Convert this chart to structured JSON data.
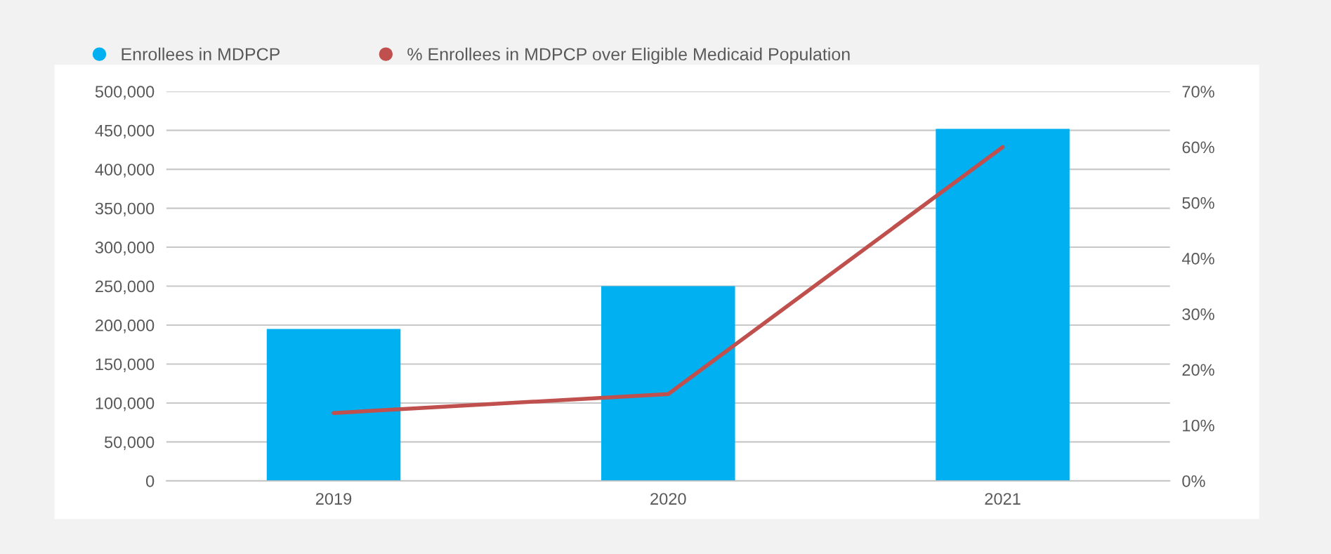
{
  "chart_data": {
    "type": "bar",
    "categories": [
      "2019",
      "2020",
      "2021"
    ],
    "series": [
      {
        "name": "Enrollees in MDPCP",
        "color": "#00b0f0",
        "values": [
          195000,
          250000,
          452000
        ]
      },
      {
        "name": "% Enrollees in MDPCP over Eligible Medicaid Population",
        "type": "line",
        "axis": "y2",
        "color": "#c0504d",
        "values": [
          12.2,
          15.6,
          60
        ]
      }
    ],
    "ylim": [
      0,
      500000
    ],
    "yticks": [
      {
        "value": 0,
        "label": "0"
      },
      {
        "value": 50000,
        "label": "50,000"
      },
      {
        "value": 100000,
        "label": "100,000"
      },
      {
        "value": 150000,
        "label": "150,000"
      },
      {
        "value": 200000,
        "label": "200,000"
      },
      {
        "value": 250000,
        "label": "250,000"
      },
      {
        "value": 300000,
        "label": "300,000"
      },
      {
        "value": 350000,
        "label": "350,000"
      },
      {
        "value": 400000,
        "label": "400,000"
      },
      {
        "value": 450000,
        "label": "450,000"
      },
      {
        "value": 500000,
        "label": "500,000"
      }
    ],
    "y2lim": [
      0,
      70
    ],
    "y2ticks": [
      {
        "value": 0,
        "label": "0%"
      },
      {
        "value": 10,
        "label": "10%"
      },
      {
        "value": 20,
        "label": "20%"
      },
      {
        "value": 30,
        "label": "30%"
      },
      {
        "value": 40,
        "label": "40%"
      },
      {
        "value": 50,
        "label": "50%"
      },
      {
        "value": 60,
        "label": "60%"
      },
      {
        "value": 70,
        "label": "70%"
      }
    ],
    "grid": "y",
    "legend": "top left",
    "line_style": "solid",
    "marker": "none"
  }
}
